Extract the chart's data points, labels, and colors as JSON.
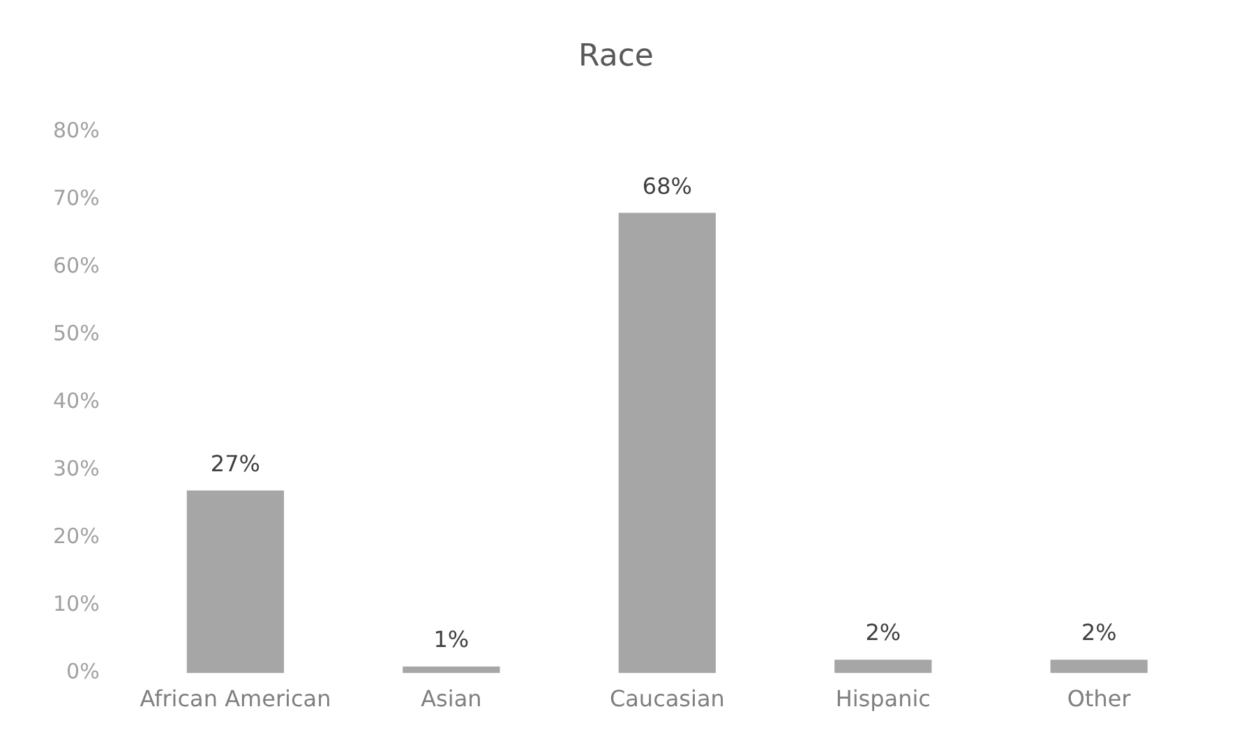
{
  "chart_data": {
    "type": "bar",
    "title": "Race",
    "categories": [
      "African American",
      "Asian",
      "Caucasian",
      "Hispanic",
      "Other"
    ],
    "values": [
      27,
      1,
      68,
      2,
      2
    ],
    "value_labels": [
      "27%",
      "1%",
      "68%",
      "2%",
      "2%"
    ],
    "color": "#a6a6a6",
    "ylim": [
      0,
      80
    ],
    "yticks": [
      {
        "value": 0,
        "label": "0%"
      },
      {
        "value": 10,
        "label": "10%"
      },
      {
        "value": 20,
        "label": "20%"
      },
      {
        "value": 30,
        "label": "30%"
      },
      {
        "value": 40,
        "label": "40%"
      },
      {
        "value": 50,
        "label": "50%"
      },
      {
        "value": 60,
        "label": "60%"
      },
      {
        "value": 70,
        "label": "70%"
      },
      {
        "value": 80,
        "label": "80%"
      }
    ],
    "grid": false,
    "legend": false
  }
}
